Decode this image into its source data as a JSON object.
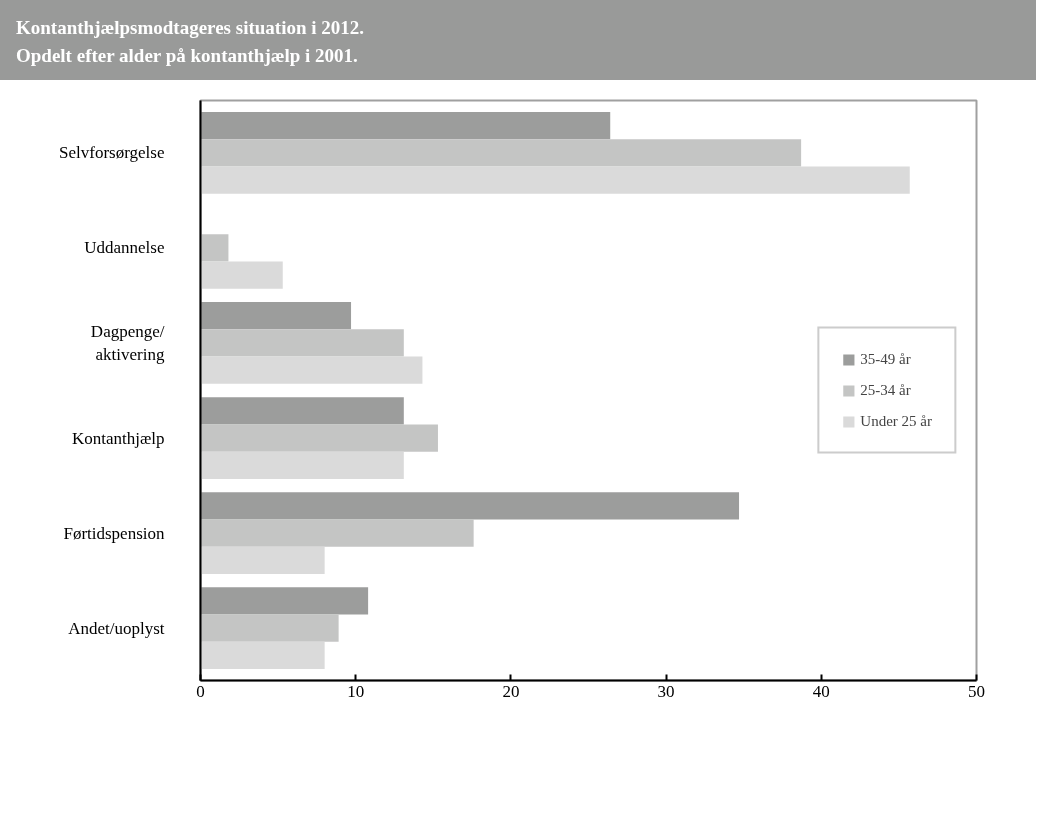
{
  "chart_data": {
    "type": "bar",
    "orientation": "horizontal",
    "title": "Kontanthjælpsmodtageres situation i 2012.",
    "subtitle": "Opdelt efter alder på kontanthjælp i 2001.",
    "categories": [
      "Selvforsørgelse",
      "Uddannelse",
      "Dagpenge/aktivering",
      "Kontanthjælp",
      "Førtidspension",
      "Andet/uoplyst"
    ],
    "series": [
      {
        "name": "35-49 år",
        "color": "#9c9d9c",
        "values": [
          26.4,
          0,
          9.7,
          13.1,
          34.7,
          10.8
        ]
      },
      {
        "name": "25-34 år",
        "color": "#c4c5c4",
        "values": [
          38.7,
          1.8,
          13.1,
          15.3,
          17.6,
          8.9
        ]
      },
      {
        "name": "Under 25 år",
        "color": "#dadada",
        "values": [
          45.7,
          5.3,
          14.3,
          13.1,
          8.0,
          8.0
        ]
      }
    ],
    "xlim": [
      0,
      50
    ],
    "xticks": [
      0,
      10,
      20,
      30,
      40,
      50
    ],
    "grid": false,
    "legend": "right"
  }
}
